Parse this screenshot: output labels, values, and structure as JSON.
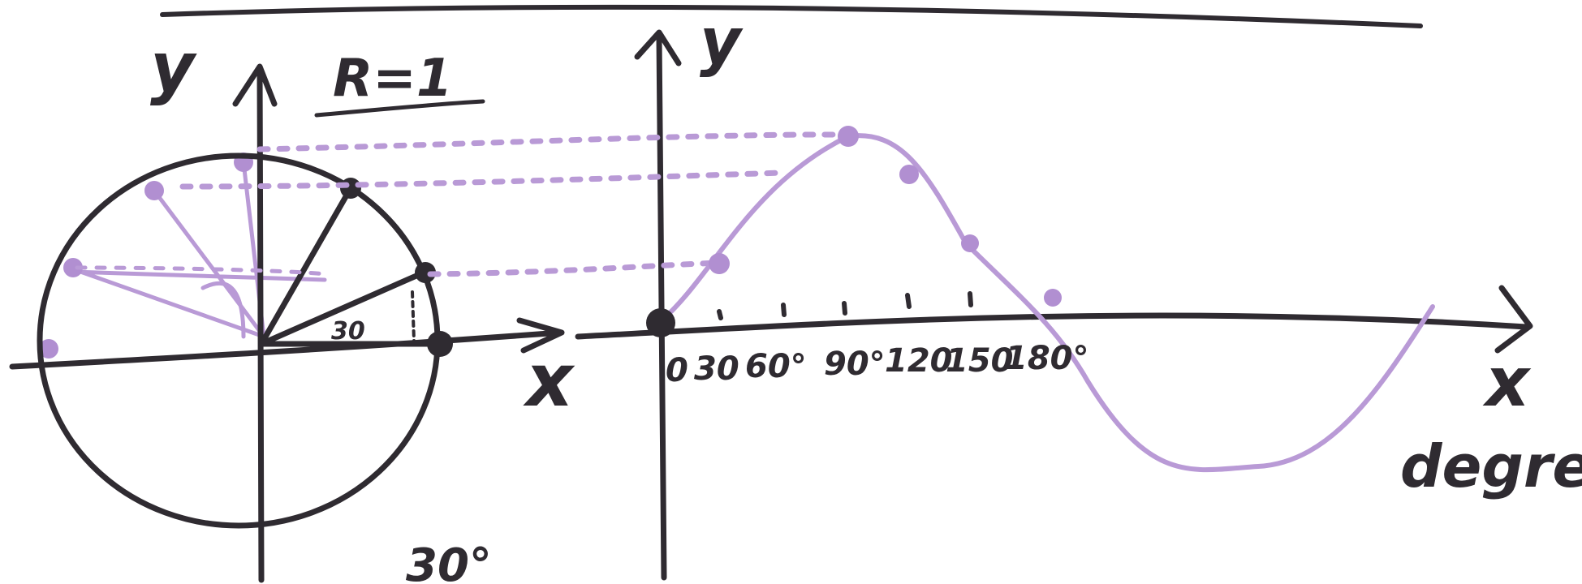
{
  "labels": {
    "radius": "R=1",
    "circle_y_axis": "y",
    "circle_x_axis": "x",
    "graph_y_axis": "y",
    "graph_x_axis": "x",
    "graph_x_unit": "degre",
    "angle_label": "30",
    "bottom_label": "30°"
  },
  "angle_ticks": [
    "0",
    "30",
    "60°",
    "90°",
    "120",
    "150",
    "180°"
  ],
  "colors": {
    "ink": "#2f2b31",
    "sine": "#b99ad6"
  }
}
